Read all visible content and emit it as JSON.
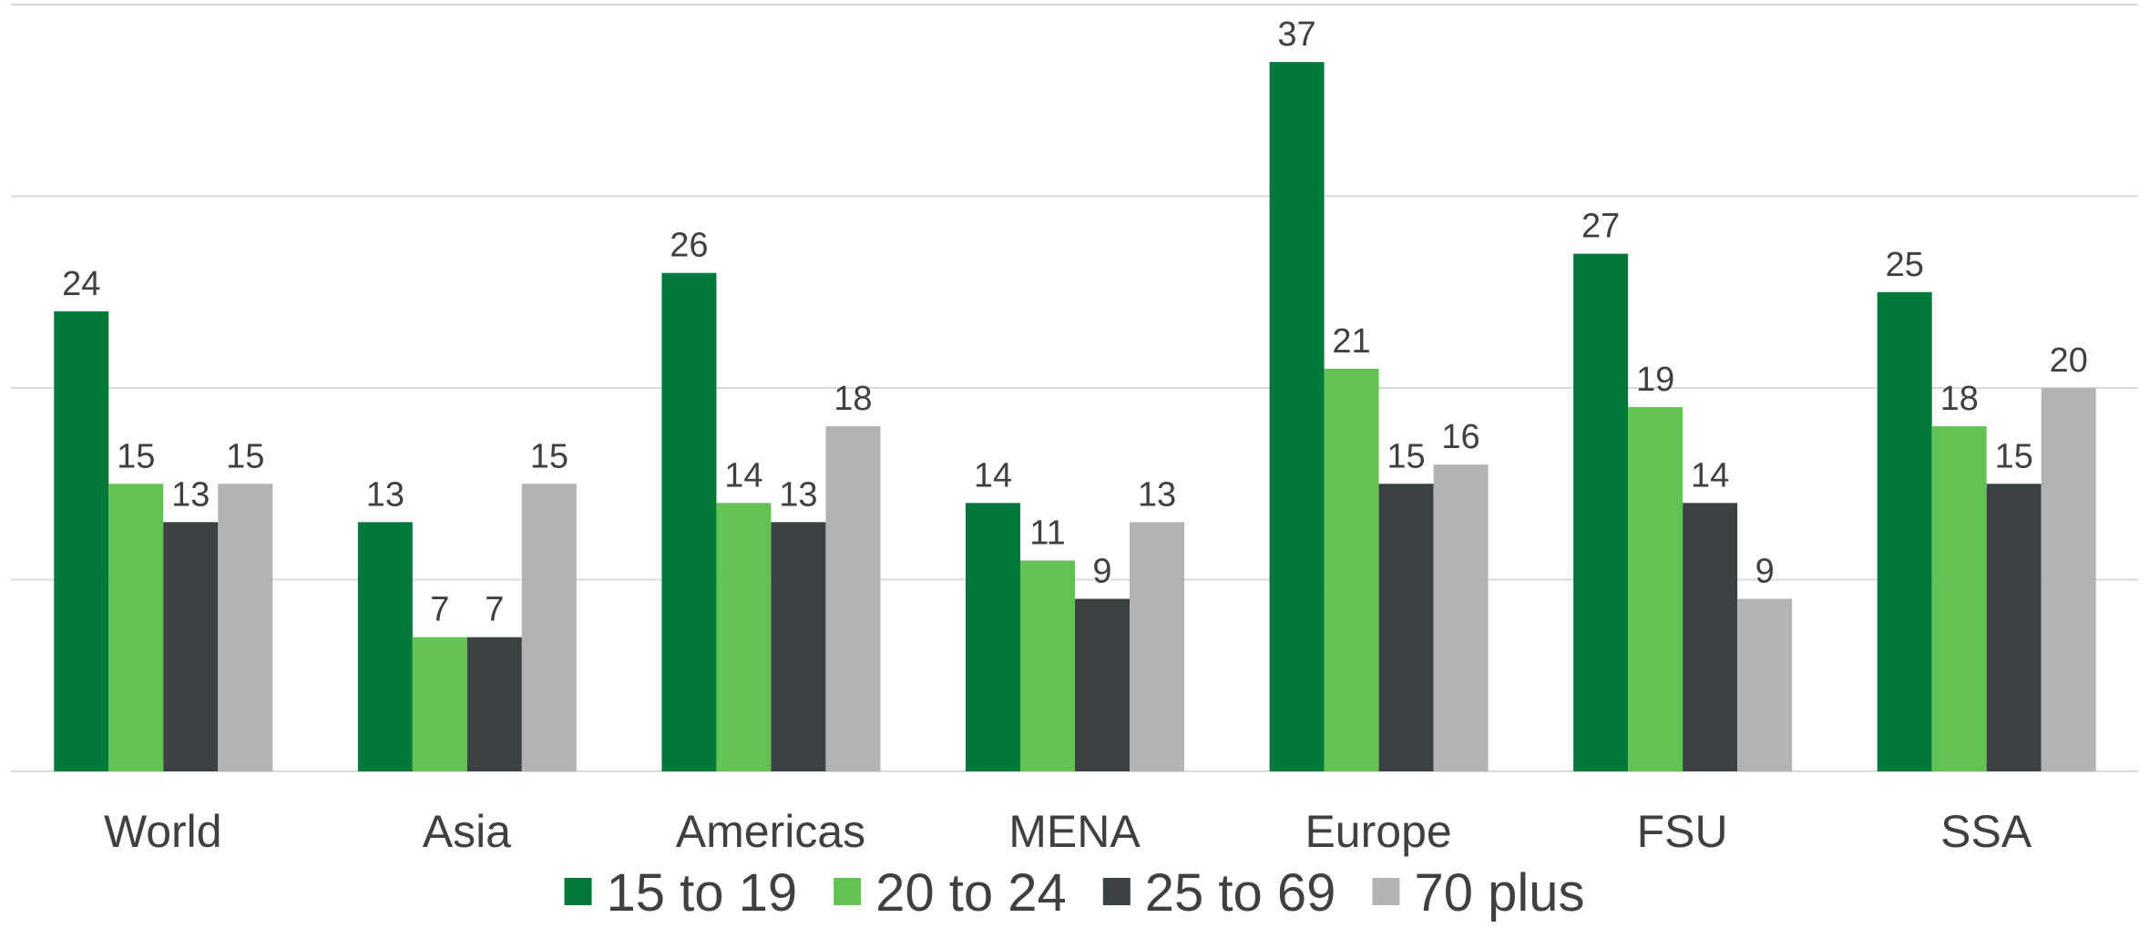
{
  "chart_data": {
    "type": "bar",
    "categories": [
      "World",
      "Asia",
      "Americas",
      "MENA",
      "Europe",
      "FSU",
      "SSA"
    ],
    "series": [
      {
        "name": "15 to 19",
        "color": "#00793a",
        "values": [
          24,
          13,
          26,
          14,
          37,
          27,
          25
        ]
      },
      {
        "name": "20 to 24",
        "color": "#62c353",
        "values": [
          15,
          7,
          14,
          11,
          21,
          19,
          18
        ]
      },
      {
        "name": "25 to 69",
        "color": "#3c4143",
        "values": [
          13,
          7,
          13,
          9,
          15,
          14,
          15
        ]
      },
      {
        "name": "70 plus",
        "color": "#b3b3b3",
        "values": [
          15,
          15,
          18,
          13,
          16,
          9,
          20
        ]
      }
    ],
    "ylim": [
      0,
      40
    ],
    "gridlines": true,
    "y_tick_labels_shown": false,
    "legend_position": "bottom",
    "data_labels": true
  }
}
